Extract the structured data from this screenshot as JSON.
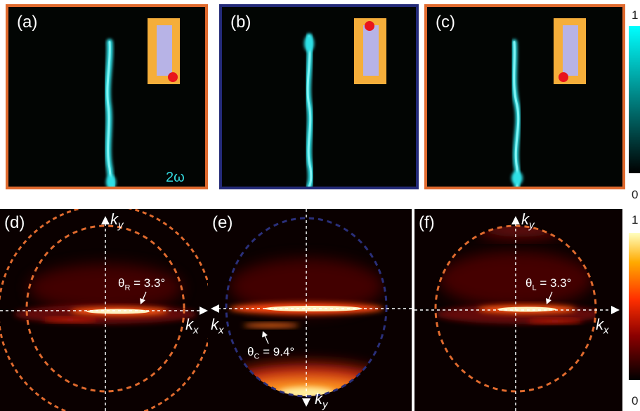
{
  "panels_top": [
    {
      "label": "(a)",
      "frame_color": "#e06a2e",
      "dot": "bottom-right",
      "annotation": "2ω"
    },
    {
      "label": "(b)",
      "frame_color": "#232a78",
      "dot": "top-right",
      "annotation": ""
    },
    {
      "label": "(c)",
      "frame_color": "#e06a2e",
      "dot": "bottom-left",
      "annotation": ""
    }
  ],
  "panels_bottom": [
    {
      "label": "(d)",
      "circle_color": "#e06a2e",
      "theta_symbol": "θ",
      "theta_sub": "R",
      "theta_value": " = 3.3°",
      "kx": "k",
      "kx_sub": "x",
      "ky": "k",
      "ky_sub": "y"
    },
    {
      "label": "(e)",
      "circle_color": "#2a2f7a",
      "theta_symbol": "θ",
      "theta_sub": "C",
      "theta_value": " = 9.4°",
      "kx": "k",
      "kx_sub": "x",
      "ky": "k",
      "ky_sub": "y"
    },
    {
      "label": "(f)",
      "circle_color": "#e06a2e",
      "theta_symbol": "θ",
      "theta_sub": "L",
      "theta_value": " = 3.3°",
      "kx": "k",
      "kx_sub": "x",
      "ky": "k",
      "ky_sub": "y"
    }
  ],
  "colorbar_top": {
    "max_label": "1",
    "min_label": "0",
    "colors": [
      "#000000",
      "#00ffff"
    ]
  },
  "colorbar_bottom": {
    "max_label": "1",
    "min_label": "0",
    "colors": [
      "#000000",
      "#8b0000",
      "#ff3000",
      "#ffaa00",
      "#ffffc0"
    ]
  },
  "inset": {
    "substrate_color": "#f5ae3a",
    "rod_color": "#b7b3e6",
    "dot_color": "#e8141c"
  }
}
